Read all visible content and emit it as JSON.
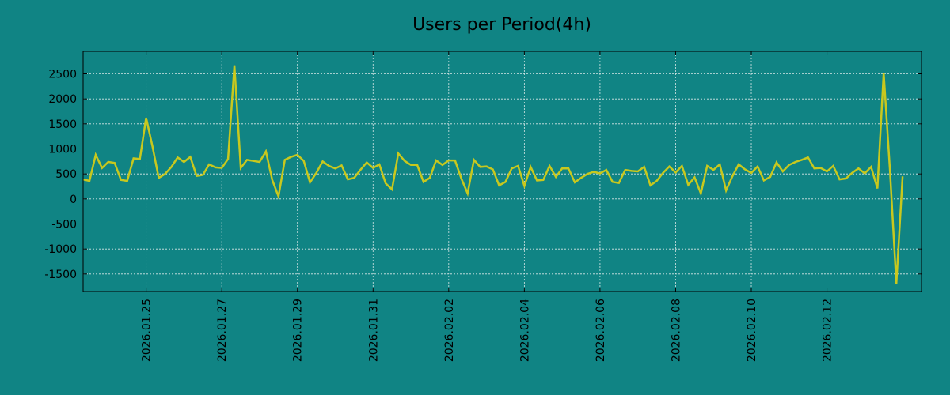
{
  "chart_data": {
    "type": "line",
    "title": "Users per Period(4h)",
    "xlabel": "",
    "ylabel": "",
    "grid": true,
    "legend": "none",
    "period_hours": 4,
    "xlim": [
      "2026-01-23 08:00",
      "2026-02-14 12:00"
    ],
    "ylim": [
      -1850,
      2950
    ],
    "x_ticks": [
      "2026.01.25",
      "2026.01.27",
      "2026.01.29",
      "2026.01.31",
      "2026.02.02",
      "2026.02.04",
      "2026.02.06",
      "2026.02.08",
      "2026.02.10",
      "2026.02.12"
    ],
    "y_ticks": [
      2500,
      2000,
      1500,
      1000,
      500,
      0,
      -500,
      -1000,
      -1500
    ],
    "colors": {
      "background": "#108484",
      "line": "#c8c81e"
    },
    "series": [
      {
        "start": "2026-01-23 08:00",
        "values": [
          390,
          360,
          880,
          620,
          740,
          720,
          380,
          360,
          810,
          800,
          1620,
          1050,
          420,
          500,
          640,
          830,
          740,
          840,
          460,
          480,
          690,
          630,
          620,
          800,
          2670,
          620,
          780,
          760,
          740,
          950,
          380,
          50,
          780,
          840,
          880,
          760,
          330,
          520,
          750,
          660,
          610,
          670,
          390,
          420,
          580,
          730,
          620,
          690,
          310,
          190,
          910,
          760,
          680,
          680,
          340,
          420,
          770,
          680,
          770,
          770,
          410,
          110,
          780,
          640,
          650,
          590,
          270,
          340,
          610,
          660,
          260,
          640,
          370,
          380,
          660,
          440,
          610,
          610,
          330,
          420,
          500,
          540,
          510,
          580,
          340,
          320,
          580,
          560,
          550,
          640,
          270,
          360,
          520,
          650,
          530,
          660,
          280,
          430,
          110,
          660,
          580,
          690,
          170,
          450,
          690,
          590,
          520,
          650,
          370,
          440,
          730,
          550,
          680,
          740,
          780,
          830,
          610,
          620,
          550,
          660,
          390,
          410,
          520,
          610,
          510,
          640,
          210,
          2520,
          560,
          -1690,
          450
        ]
      }
    ]
  }
}
